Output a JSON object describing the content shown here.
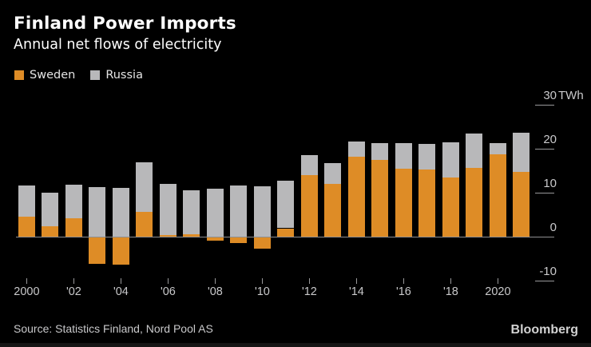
{
  "page": {
    "background": "#000000"
  },
  "header": {
    "title": "Finland Power Imports",
    "subtitle": "Annual net flows of electricity"
  },
  "legend": {
    "items": [
      {
        "label": "Sweden",
        "color": "#DE8C26"
      },
      {
        "label": "Russia",
        "color": "#B8B8BA"
      }
    ]
  },
  "footer": {
    "source": "Source: Statistics Finland, Nord Pool AS",
    "brand": "Bloomberg"
  },
  "chart_data": {
    "type": "bar",
    "stacked": true,
    "title": "Finland Power Imports",
    "subtitle": "Annual net flows of electricity",
    "unit": "TWh",
    "grid": false,
    "legend_position": "top-left",
    "baseline": 0,
    "categories": [
      2000,
      2001,
      2002,
      2003,
      2004,
      2005,
      2006,
      2007,
      2008,
      2009,
      2010,
      2011,
      2012,
      2013,
      2014,
      2015,
      2016,
      2017,
      2018,
      2019,
      2020,
      2021
    ],
    "series": [
      {
        "name": "Sweden",
        "color": "#DE8C26",
        "values": [
          4.7,
          2.5,
          4.2,
          -6.1,
          -6.2,
          5.7,
          0.5,
          0.6,
          -0.8,
          -1.3,
          -2.6,
          2.0,
          14.1,
          12.1,
          18.3,
          17.5,
          15.6,
          15.3,
          13.5,
          15.8,
          18.8,
          14.8
        ]
      },
      {
        "name": "Russia",
        "color": "#B8B8BA",
        "values": [
          7.1,
          7.6,
          7.7,
          11.3,
          11.2,
          11.3,
          11.6,
          10.0,
          11.0,
          11.7,
          11.6,
          10.9,
          4.5,
          4.7,
          3.4,
          3.8,
          5.7,
          5.8,
          8.0,
          7.7,
          2.6,
          9.0
        ]
      }
    ],
    "yaxis": {
      "side": "right",
      "range": [
        -10,
        30
      ],
      "ticks": [
        {
          "value": 30,
          "label": "30",
          "suffix": "TWh"
        },
        {
          "value": 20,
          "label": "20",
          "suffix": ""
        },
        {
          "value": 10,
          "label": "10",
          "suffix": ""
        },
        {
          "value": 0,
          "label": "0",
          "suffix": ""
        },
        {
          "value": -10,
          "label": "-10",
          "suffix": ""
        }
      ]
    },
    "xaxis": {
      "ticks": [
        {
          "year": 2000,
          "label": "2000"
        },
        {
          "year": 2002,
          "label": "'02"
        },
        {
          "year": 2004,
          "label": "'04"
        },
        {
          "year": 2006,
          "label": "'06"
        },
        {
          "year": 2008,
          "label": "'08"
        },
        {
          "year": 2010,
          "label": "'10"
        },
        {
          "year": 2012,
          "label": "'12"
        },
        {
          "year": 2014,
          "label": "'14"
        },
        {
          "year": 2016,
          "label": "'16"
        },
        {
          "year": 2018,
          "label": "'18"
        },
        {
          "year": 2020,
          "label": "2020"
        }
      ]
    }
  }
}
